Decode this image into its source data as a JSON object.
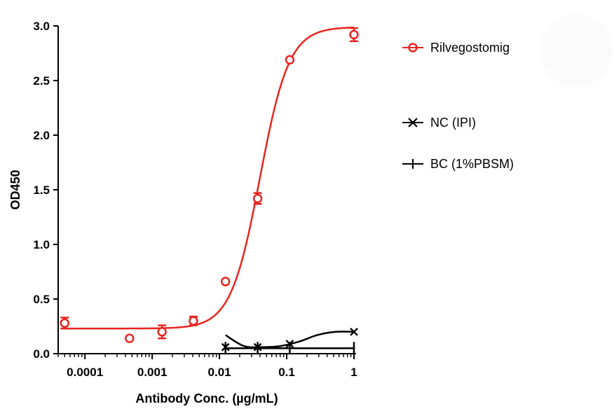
{
  "chart_data": {
    "type": "scatter",
    "xlabel": "Antibody Conc. (µg/mL)",
    "ylabel": "OD450",
    "xscale": "log",
    "xlim": [
      4e-05,
      1.0
    ],
    "ylim": [
      0,
      3.0
    ],
    "x_ticks": [
      {
        "value": 0.0001,
        "label": "0.0001"
      },
      {
        "value": 0.001,
        "label": "0.001"
      },
      {
        "value": 0.01,
        "label": "0.01"
      },
      {
        "value": 0.1,
        "label": "0.1"
      },
      {
        "value": 1,
        "label": "1"
      }
    ],
    "y_ticks": [
      {
        "value": 0.0,
        "label": "0.0"
      },
      {
        "value": 0.5,
        "label": "0.5"
      },
      {
        "value": 1.0,
        "label": "1.0"
      },
      {
        "value": 1.5,
        "label": "1.5"
      },
      {
        "value": 2.0,
        "label": "2.0"
      },
      {
        "value": 2.5,
        "label": "2.5"
      },
      {
        "value": 3.0,
        "label": "3.0"
      }
    ],
    "legend_position": "right",
    "series": [
      {
        "name": "Rilvegostomig",
        "color": "#e8251f",
        "marker": "circle",
        "x": [
          5e-05,
          0.00046,
          0.0014,
          0.0041,
          0.0123,
          0.037,
          0.111,
          1.0
        ],
        "y": [
          0.28,
          0.14,
          0.2,
          0.3,
          0.66,
          1.42,
          2.69,
          2.92
        ],
        "err": [
          0.05,
          0.0,
          0.06,
          0.04,
          0.0,
          0.05,
          0.0,
          0.06
        ],
        "fit": {
          "bottom": 0.23,
          "top": 2.99,
          "ec50": 0.04,
          "hill": 2.0
        }
      },
      {
        "name": "NC (IPI)",
        "color": "#000000",
        "marker": "x",
        "x": [
          0.0123,
          0.037,
          0.111,
          1.0
        ],
        "y": [
          0.06,
          0.06,
          0.09,
          0.2
        ],
        "fit_y": [
          0.17,
          0.07,
          0.06,
          0.07,
          0.11,
          0.17,
          0.2,
          0.2
        ]
      },
      {
        "name": "BC (1%PBSM)",
        "color": "#000000",
        "marker": "plus",
        "x": [
          0.0123,
          0.037,
          0.111,
          1.0
        ],
        "y": [
          0.05,
          0.05,
          0.05,
          0.05
        ]
      }
    ]
  }
}
